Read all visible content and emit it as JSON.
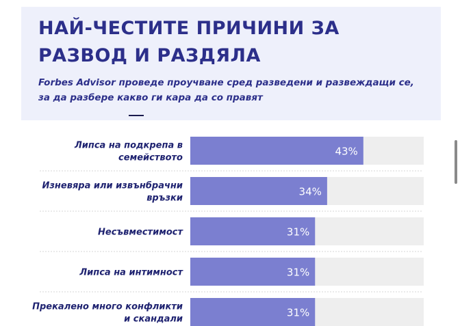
{
  "header": {
    "title_line1": "НАЙ-ЧЕСТИТЕ ПРИЧИНИ ЗА",
    "title_line2": "РАЗВОД И РАЗДЯЛА",
    "subtitle_line1": "Forbes Advisor проведе проучване сред разведени и развеждащи се,",
    "subtitle_line2": "за да разбере какво ги кара да со правят"
  },
  "colors": {
    "bar": "#7b7fd0",
    "track": "#eeeeee",
    "title": "#2c2f8a",
    "label": "#1e2270",
    "header_bg": "#eef0fb"
  },
  "chart_data": {
    "type": "bar",
    "orientation": "horizontal",
    "categories": [
      [
        "Липса на подкрепа в",
        "семейството"
      ],
      [
        "Изневяра или извънбрачни",
        "връзки"
      ],
      [
        "Несъвместимост"
      ],
      [
        "Липса на интимност"
      ],
      [
        "Прекалено много конфликти",
        "и скандали"
      ]
    ],
    "values": [
      43,
      34,
      31,
      31,
      31
    ],
    "value_labels": [
      "43%",
      "34%",
      "31%",
      "31%",
      "31%"
    ],
    "xlim": [
      0,
      58
    ],
    "grid": false
  }
}
